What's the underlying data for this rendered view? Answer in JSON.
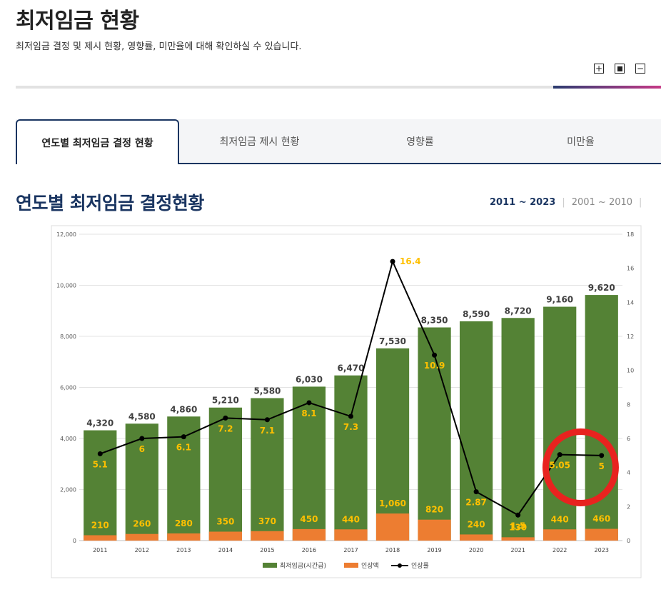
{
  "header": {
    "title": "최저임금 현황",
    "description": "최저임금 결정 및 제시 현황, 영향률, 미만율에 대해 확인하실 수 있습니다."
  },
  "zoom": {
    "plus": "+",
    "minus": "−"
  },
  "tabs": [
    {
      "label": "연도별 최저임금 결정 현황",
      "active": true
    },
    {
      "label": "최저임금 제시 현황",
      "active": false
    },
    {
      "label": "영향률",
      "active": false
    },
    {
      "label": "미만율",
      "active": false
    }
  ],
  "section": {
    "title": "연도별 최저임금 결정현황",
    "ranges": [
      {
        "label": "2011 ~ 2023",
        "active": true
      },
      {
        "label": "2001 ~ 2010",
        "active": false
      }
    ],
    "range_separator": "|"
  },
  "colors": {
    "wage_bar": "#548235",
    "raise_bar": "#ed7d31",
    "rate_line": "#000000",
    "rate_label": "#ffc000",
    "highlight_circle": "#e8231f"
  },
  "chart_data": {
    "type": "bar",
    "categories": [
      "2011",
      "2012",
      "2013",
      "2014",
      "2015",
      "2016",
      "2017",
      "2018",
      "2019",
      "2020",
      "2021",
      "2022",
      "2023"
    ],
    "series": [
      {
        "name": "최저임금(시간급)",
        "type": "bar",
        "axis": "left",
        "values": [
          4320,
          4580,
          4860,
          5210,
          5580,
          6030,
          6470,
          7530,
          8350,
          8590,
          8720,
          9160,
          9620
        ],
        "labels": [
          "4,320",
          "4,580",
          "4,860",
          "5,210",
          "5,580",
          "6,030",
          "6,470",
          "7,530",
          "8,350",
          "8,590",
          "8,720",
          "9,160",
          "9,620"
        ]
      },
      {
        "name": "인상액",
        "type": "bar",
        "axis": "left",
        "values": [
          210,
          260,
          280,
          350,
          370,
          450,
          440,
          1060,
          820,
          240,
          130,
          440,
          460
        ],
        "labels": [
          "210",
          "260",
          "280",
          "350",
          "370",
          "450",
          "440",
          "1,060",
          "820",
          "240",
          "130",
          "440",
          "460"
        ]
      },
      {
        "name": "인상률",
        "type": "line",
        "axis": "right",
        "values": [
          5.1,
          6,
          6.1,
          7.2,
          7.1,
          8.1,
          7.3,
          16.4,
          10.9,
          2.87,
          1.5,
          5.05,
          5
        ],
        "labels": [
          "5.1",
          "6",
          "6.1",
          "7.2",
          "7.1",
          "8.1",
          "7.3",
          "16.4",
          "10.9",
          "2.87",
          "1.5",
          "5.05",
          "5"
        ]
      }
    ],
    "y_left": {
      "ylim": [
        0,
        12000
      ],
      "ticks": [
        "0",
        "2,000",
        "4,000",
        "6,000",
        "8,000",
        "10,000",
        "12,000"
      ]
    },
    "y_right": {
      "ylim": [
        0,
        18
      ],
      "ticks": [
        "0",
        "2",
        "4",
        "6",
        "8",
        "10",
        "12",
        "14",
        "16",
        "18"
      ]
    },
    "grid": true,
    "legend_position": "bottom-center",
    "highlight": {
      "category_range": [
        "2022",
        "2023"
      ]
    }
  }
}
